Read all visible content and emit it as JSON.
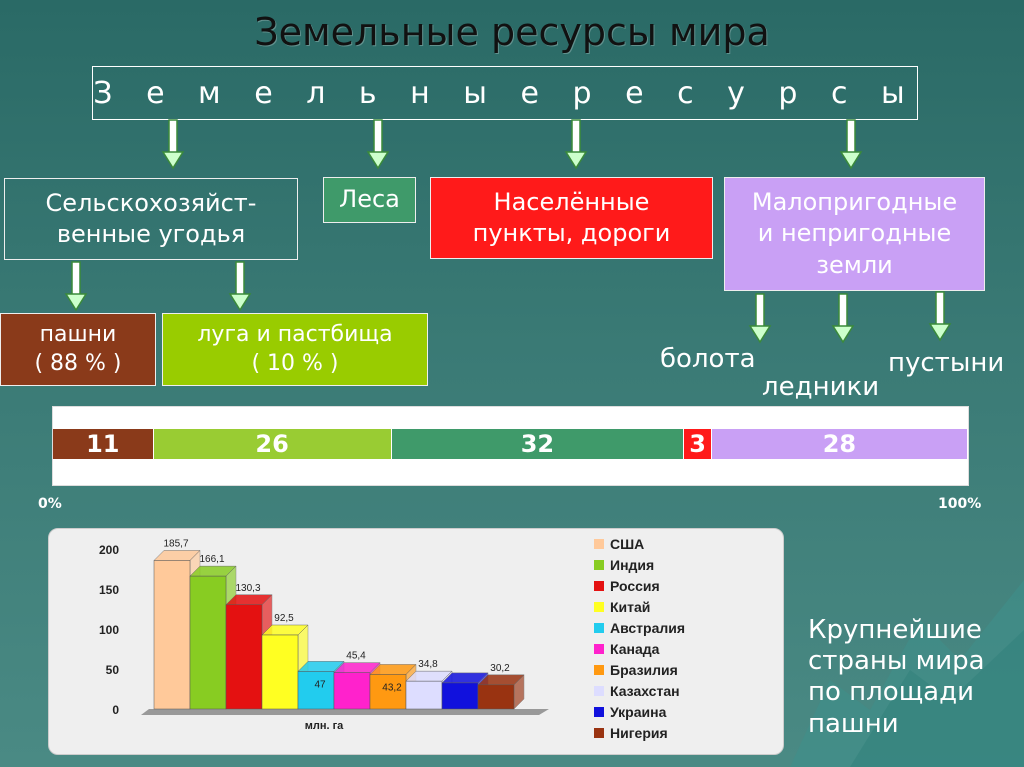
{
  "title": "Земельные ресурсы мира",
  "root_label": "З е м е л ь н ы е   р е с у р с ы",
  "categories": {
    "agri": "Сельскохозяйст-\nвенные угодья",
    "forest": "Леса",
    "settle": "Населённые\nпункты, дороги",
    "waste": "Малопригодные\nи непригодные\nземли"
  },
  "agri_sub": {
    "arable": "пашни\n( 88 % )",
    "meadow": "луга  и  пастбища\n( 10 % )"
  },
  "waste_sub": {
    "swamps": "болота",
    "glaciers": "ледники",
    "deserts": "пустыни"
  },
  "structure_bar": {
    "segments": [
      {
        "value": 11,
        "label": "11",
        "color": "#8a3a1a"
      },
      {
        "value": 26,
        "label": "26",
        "color": "#99cc33"
      },
      {
        "value": 32,
        "label": "32",
        "color": "#3f9a6a"
      },
      {
        "value": 3,
        "label": "3",
        "color": "#ff1a1a"
      },
      {
        "value": 28,
        "label": "28",
        "color": "#c9a0f5"
      }
    ],
    "start_label": "0%",
    "end_label": "100%"
  },
  "caption": "Крупнейшие страны мира по площади пашни",
  "chart_data": {
    "type": "bar",
    "categories": [
      "США",
      "Индия",
      "Россия",
      "Китай",
      "Австралия",
      "Канада",
      "Бразилия",
      "Казахстан",
      "Украина",
      "Нигерия"
    ],
    "values": [
      185.7,
      166.1,
      130.3,
      92.5,
      47,
      45.4,
      43.2,
      34.8,
      32.6,
      30.2
    ],
    "value_labels": [
      "185,7",
      "166,1",
      "130,3",
      "92,5",
      "47",
      "45,4",
      "43,2",
      "34,8",
      "",
      "30,2"
    ],
    "colors": [
      "#ffc99a",
      "#88cc22",
      "#e41111",
      "#ffff22",
      "#22ccee",
      "#ff22cc",
      "#ff9911",
      "#ddddff",
      "#1111dd",
      "#993311"
    ],
    "yticks": [
      "0",
      "50",
      "100",
      "150",
      "200"
    ],
    "ylim": [
      0,
      200
    ],
    "xlabel": "млн. га",
    "legend_position": "right"
  }
}
